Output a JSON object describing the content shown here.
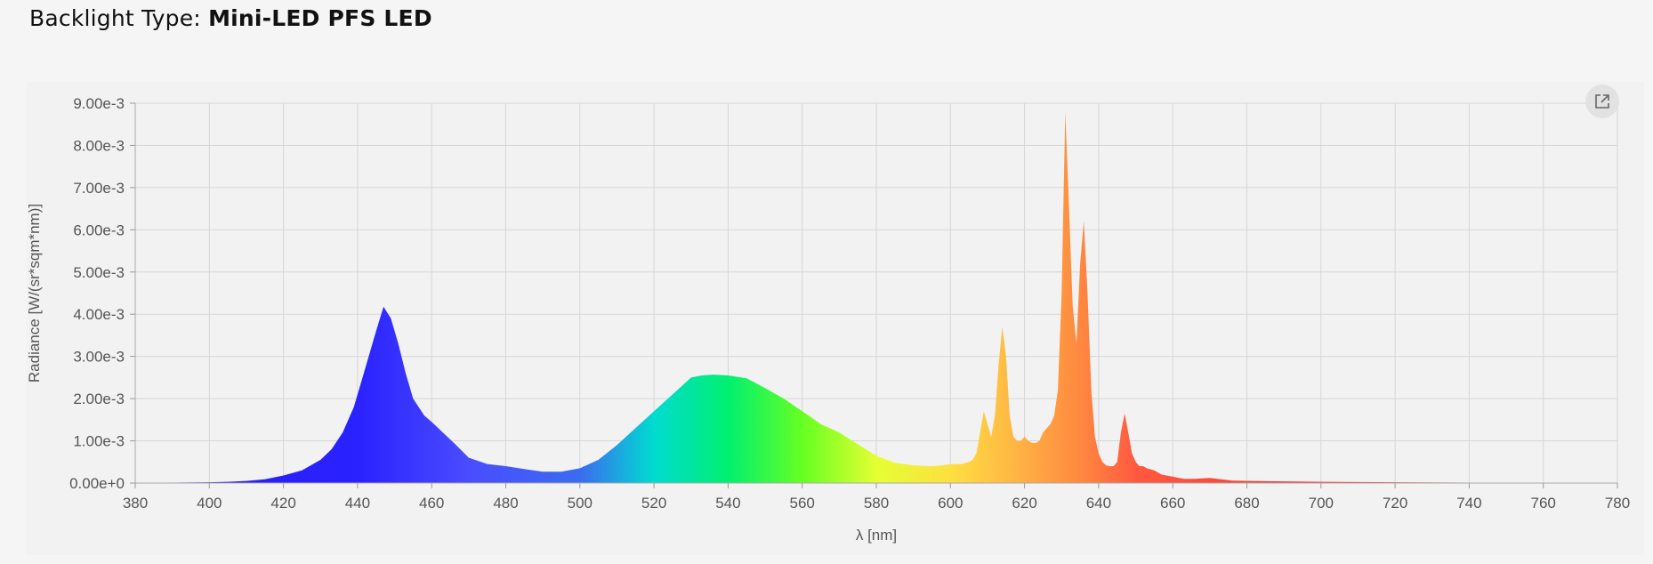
{
  "header": {
    "label": "Backlight Type:",
    "value": "Mini-LED PFS LED"
  },
  "export_button": {
    "icon": "open-in-new-icon"
  },
  "chart_data": {
    "type": "area",
    "xlabel": "λ [nm]",
    "ylabel": "Radiance [W/(sr*sqm*nm)]",
    "xlim": [
      380,
      780
    ],
    "ylim": [
      0,
      0.009
    ],
    "x_ticks": [
      "380",
      "400",
      "420",
      "440",
      "460",
      "480",
      "500",
      "520",
      "540",
      "560",
      "580",
      "600",
      "620",
      "640",
      "660",
      "680",
      "700",
      "720",
      "740",
      "760",
      "780"
    ],
    "y_ticks": [
      "0.00e+0",
      "1.00e-3",
      "2.00e-3",
      "3.00e-3",
      "4.00e-3",
      "5.00e-3",
      "6.00e-3",
      "7.00e-3",
      "8.00e-3",
      "9.00e-3"
    ],
    "grid": true,
    "fill": "spectral-gradient",
    "series": [
      {
        "x": [
          380,
          390,
          400,
          405,
          410,
          415,
          420,
          425,
          430,
          433,
          436,
          439,
          441,
          443,
          445,
          447,
          449,
          451,
          453,
          455,
          458,
          460,
          463,
          466,
          470,
          475,
          480,
          485,
          490,
          495,
          500,
          505,
          510,
          515,
          520,
          525,
          530,
          533,
          536,
          540,
          545,
          550,
          555,
          560,
          565,
          570,
          575,
          580,
          585,
          590,
          595,
          598,
          600,
          603,
          605,
          606,
          607,
          608,
          609,
          610,
          611,
          612,
          613,
          614,
          615,
          616,
          617,
          618,
          619,
          620,
          621,
          622,
          623,
          624,
          625,
          626,
          627,
          628,
          629,
          630,
          631,
          632,
          633,
          634,
          635,
          636,
          637,
          638,
          639,
          640,
          641,
          642,
          643,
          644,
          645,
          646,
          647,
          648,
          649,
          650,
          651,
          652,
          653,
          655,
          657,
          660,
          663,
          666,
          670,
          673,
          676,
          680,
          690,
          700,
          720,
          740,
          760,
          780
        ],
        "y": [
          1e-05,
          1e-05,
          2e-05,
          3e-05,
          5e-05,
          9e-05,
          0.00018,
          0.0003,
          0.00055,
          0.0008,
          0.0012,
          0.0018,
          0.0024,
          0.003,
          0.0036,
          0.00418,
          0.0039,
          0.0033,
          0.0026,
          0.002,
          0.0016,
          0.00145,
          0.0012,
          0.00095,
          0.0006,
          0.00045,
          0.0004,
          0.00033,
          0.00027,
          0.00027,
          0.00035,
          0.00055,
          0.0009,
          0.0013,
          0.0017,
          0.0021,
          0.0025,
          0.00255,
          0.00257,
          0.00255,
          0.00248,
          0.00225,
          0.002,
          0.0017,
          0.0014,
          0.0012,
          0.00092,
          0.00065,
          0.00048,
          0.00042,
          0.0004,
          0.00042,
          0.00045,
          0.00045,
          0.0005,
          0.00055,
          0.0007,
          0.0012,
          0.0017,
          0.0014,
          0.0011,
          0.0016,
          0.0028,
          0.0037,
          0.003,
          0.0016,
          0.0011,
          0.001,
          0.001,
          0.0011,
          0.001,
          0.00095,
          0.00095,
          0.001,
          0.0012,
          0.0013,
          0.0014,
          0.0016,
          0.0022,
          0.0045,
          0.0088,
          0.0065,
          0.0042,
          0.0033,
          0.0052,
          0.0062,
          0.0045,
          0.0022,
          0.0011,
          0.0007,
          0.0005,
          0.00042,
          0.0004,
          0.0004,
          0.0005,
          0.0012,
          0.00165,
          0.0012,
          0.0007,
          0.0005,
          0.0004,
          0.0004,
          0.00035,
          0.0003,
          0.0002,
          0.00015,
          0.0001,
          0.0001,
          0.00012,
          9e-05,
          6e-05,
          5e-05,
          4e-05,
          3e-05,
          2e-05,
          1e-05,
          1e-05,
          1e-05
        ]
      }
    ]
  }
}
